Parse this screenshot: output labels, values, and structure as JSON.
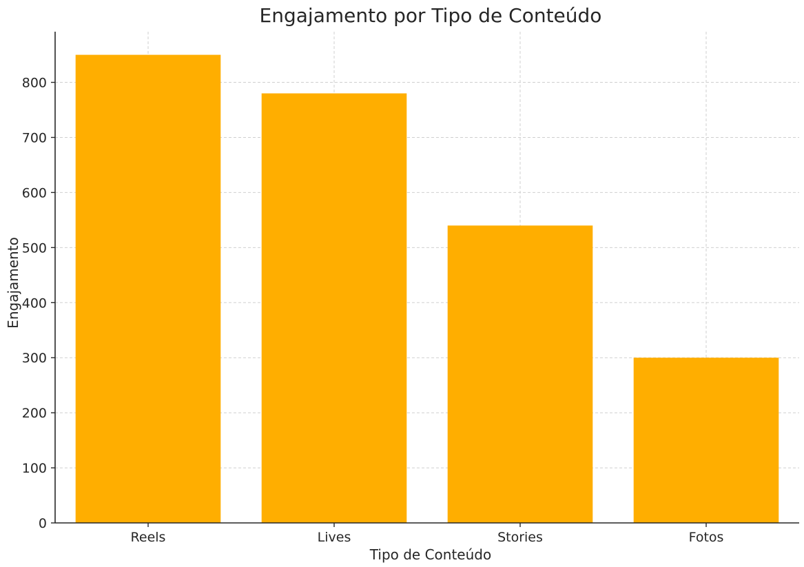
{
  "chart_data": {
    "type": "bar",
    "title": "Engajamento por Tipo de Conteúdo",
    "xlabel": "Tipo de Conteúdo",
    "ylabel": "Engajamento",
    "categories": [
      "Reels",
      "Lives",
      "Stories",
      "Fotos"
    ],
    "values": [
      850,
      780,
      540,
      300
    ],
    "ylim": [
      0,
      892
    ],
    "yticks": [
      0,
      100,
      200,
      300,
      400,
      500,
      600,
      700,
      800
    ],
    "grid": true,
    "bar_color": "#FFAE00",
    "legend": null
  }
}
